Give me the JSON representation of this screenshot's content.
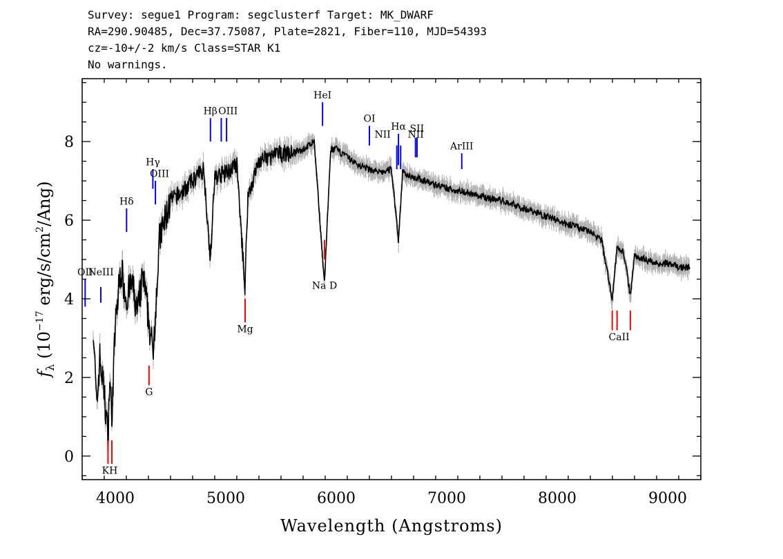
{
  "header": {
    "line1": "Survey: segue1 Program: segclusterf Target: MK_DWARF",
    "line2": "RA=290.90485, Dec=37.75087, Plate=2821, Fiber=110, MJD=54393",
    "line3": "cz=-10+/-2 km/s Class=STAR K1",
    "line4": "No warnings."
  },
  "colors": {
    "flux": "#000000",
    "error_band": "#b0b0b0",
    "emission": "#0000ff",
    "absorption": "#ff0000",
    "axes": "#000000"
  },
  "chart_data": {
    "type": "line",
    "xlabel": "Wavelength (Angstroms)",
    "ylabel": "f_λ (10^-17 erg/s/cm^2/Ang)",
    "xlim": [
      3700,
      9300
    ],
    "ylim": [
      -0.6,
      9.6
    ],
    "xticks": [
      4000,
      5000,
      6000,
      7000,
      8000,
      9000
    ],
    "yticks": [
      0,
      2,
      4,
      6,
      8
    ],
    "series": [
      {
        "x": [
          3800,
          3830,
          3860,
          3900,
          3933,
          3950,
          3968,
          4000,
          4050,
          4101,
          4150,
          4200,
          4250,
          4300,
          4340,
          4400,
          4450,
          4500,
          4600,
          4700,
          4800,
          4861,
          4900,
          5000,
          5100,
          5173,
          5200,
          5300,
          5400,
          5500,
          5600,
          5700,
          5800,
          5893,
          5950,
          6000,
          6100,
          6200,
          6300,
          6400,
          6500,
          6563,
          6600,
          6700,
          6800,
          6900,
          7000,
          7100,
          7200,
          7300,
          7400,
          7500,
          7600,
          7700,
          7800,
          7900,
          8000,
          8100,
          8200,
          8300,
          8400,
          8498,
          8542,
          8600,
          8662,
          8700,
          8800,
          8900,
          9000,
          9100,
          9200
        ],
        "y": [
          3.4,
          1.2,
          2.5,
          1.6,
          0.5,
          2.0,
          1.0,
          3.3,
          4.8,
          4.0,
          4.4,
          3.6,
          4.6,
          3.5,
          2.6,
          5.5,
          6.0,
          6.5,
          6.7,
          7.0,
          7.3,
          5.0,
          7.1,
          7.2,
          7.4,
          4.3,
          6.6,
          7.5,
          7.6,
          7.7,
          7.7,
          7.8,
          8.0,
          4.4,
          7.8,
          7.8,
          7.6,
          7.4,
          7.3,
          7.2,
          7.3,
          5.5,
          7.2,
          7.1,
          7.0,
          6.9,
          6.8,
          6.75,
          6.7,
          6.6,
          6.55,
          6.5,
          6.4,
          6.3,
          6.2,
          6.1,
          6.0,
          5.9,
          5.8,
          5.7,
          5.5,
          4.0,
          5.3,
          5.2,
          4.1,
          5.1,
          5.0,
          4.9,
          4.9,
          4.8,
          4.8
        ]
      }
    ],
    "emission_lines": [
      {
        "label": "OII",
        "x": 3727,
        "y1": 3.8,
        "y2": 4.5
      },
      {
        "label": "NeIII",
        "x": 3869,
        "y1": 3.9,
        "y2": 4.3
      },
      {
        "label": "Hδ",
        "x": 4102,
        "y1": 5.7,
        "y2": 6.3
      },
      {
        "label": "Hγ",
        "x": 4340,
        "y1": 6.8,
        "y2": 7.3
      },
      {
        "label": "OIII",
        "x": 4363,
        "y1": 6.4,
        "y2": 7.0
      },
      {
        "label": "Hβ",
        "x": 4861,
        "y1": 8.0,
        "y2": 8.6
      },
      {
        "label": "OIII",
        "x": 4959,
        "y1": 8.0,
        "y2": 8.6
      },
      {
        "label": "OIII",
        "x": 5007,
        "y1": 8.0,
        "y2": 8.6
      },
      {
        "label": "HeI",
        "x": 5876,
        "y1": 8.4,
        "y2": 9.0
      },
      {
        "label": "OI",
        "x": 6300,
        "y1": 7.9,
        "y2": 8.4
      },
      {
        "label": "NII",
        "x": 6548,
        "y1": 7.3,
        "y2": 7.9
      },
      {
        "label": "Hα",
        "x": 6563,
        "y1": 7.4,
        "y2": 8.2
      },
      {
        "label": "NII",
        "x": 6583,
        "y1": 7.3,
        "y2": 7.9
      },
      {
        "label": "SII",
        "x": 6717,
        "y1": 7.6,
        "y2": 8.1
      },
      {
        "label": "SII",
        "x": 6731,
        "y1": 7.6,
        "y2": 8.1
      },
      {
        "label": "ArIII",
        "x": 7136,
        "y1": 7.3,
        "y2": 7.7
      }
    ],
    "absorption_lines": [
      {
        "label": "K",
        "x": 3934,
        "y1": -0.2,
        "y2": 0.4
      },
      {
        "label": "H",
        "x": 3969,
        "y1": -0.2,
        "y2": 0.4
      },
      {
        "label": "G",
        "x": 4305,
        "y1": 1.8,
        "y2": 2.3
      },
      {
        "label": "Mg",
        "x": 5175,
        "y1": 3.4,
        "y2": 4.0
      },
      {
        "label": "Na D",
        "x": 5894,
        "y1": 5.0,
        "y2": 5.5
      },
      {
        "label": "CaII",
        "x": 8498,
        "y1": 3.7,
        "y2": 3.2
      },
      {
        "label": "CaII",
        "x": 8542,
        "y1": 3.7,
        "y2": 3.2
      },
      {
        "label": "CaII",
        "x": 8662,
        "y1": 3.7,
        "y2": 3.2
      }
    ],
    "line_labels": [
      {
        "text": "OII",
        "x": 3727,
        "y": 4.6,
        "color": "emission"
      },
      {
        "text": "NeIII",
        "x": 3869,
        "y": 4.6,
        "color": "emission"
      },
      {
        "text": "Hδ",
        "x": 4102,
        "y": 6.4,
        "color": "emission"
      },
      {
        "text": "Hγ",
        "x": 4340,
        "y": 7.4,
        "color": "emission"
      },
      {
        "text": "OIII",
        "x": 4400,
        "y": 7.1,
        "color": "emission"
      },
      {
        "text": "Hβ",
        "x": 4861,
        "y": 8.7,
        "color": "emission"
      },
      {
        "text": "OIII",
        "x": 5020,
        "y": 8.7,
        "color": "emission"
      },
      {
        "text": "HeI",
        "x": 5876,
        "y": 9.1,
        "color": "emission"
      },
      {
        "text": "OI",
        "x": 6300,
        "y": 8.5,
        "color": "emission"
      },
      {
        "text": "NII",
        "x": 6420,
        "y": 8.1,
        "color": "emission"
      },
      {
        "text": "Hα",
        "x": 6563,
        "y": 8.3,
        "color": "emission"
      },
      {
        "text": "NII",
        "x": 6720,
        "y": 8.1,
        "color": "emission"
      },
      {
        "text": "SII",
        "x": 6730,
        "y": 8.25,
        "color": "emission"
      },
      {
        "text": "ArIII",
        "x": 7136,
        "y": 7.8,
        "color": "emission"
      },
      {
        "text": "KH",
        "x": 3950,
        "y": -0.45,
        "color": "absorption"
      },
      {
        "text": "G",
        "x": 4305,
        "y": 1.55,
        "color": "absorption"
      },
      {
        "text": "Mg",
        "x": 5175,
        "y": 3.15,
        "color": "absorption"
      },
      {
        "text": "Na D",
        "x": 5894,
        "y": 4.25,
        "color": "absorption"
      },
      {
        "text": "CaII",
        "x": 8560,
        "y": 2.95,
        "color": "absorption"
      }
    ]
  }
}
